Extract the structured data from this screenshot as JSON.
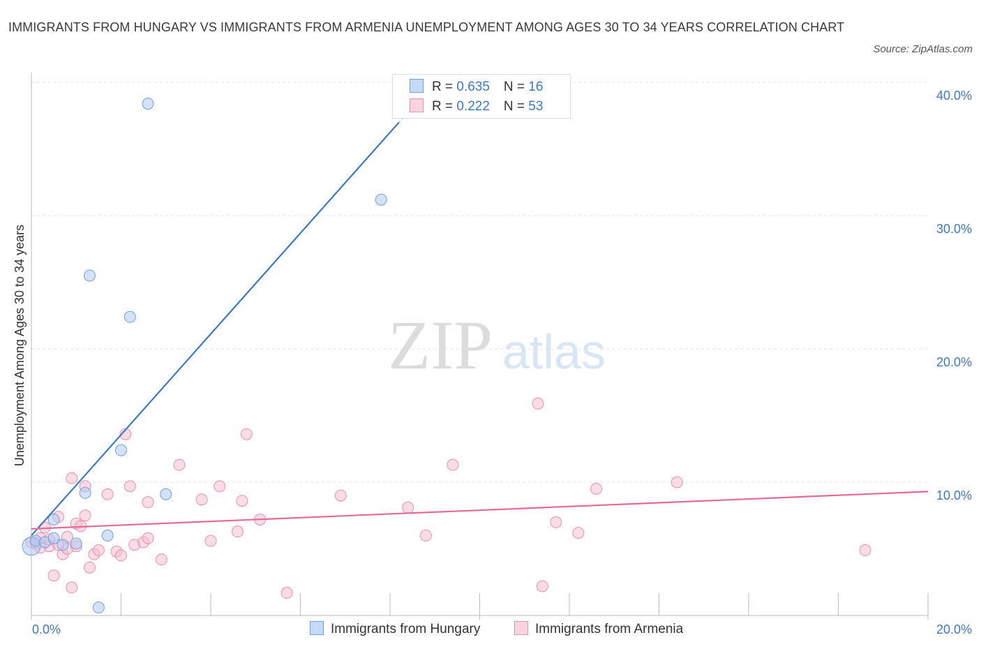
{
  "title": "IMMIGRANTS FROM HUNGARY VS IMMIGRANTS FROM ARMENIA UNEMPLOYMENT AMONG AGES 30 TO 34 YEARS CORRELATION CHART",
  "source": "Source: ZipAtlas.com",
  "watermark": {
    "zip": "ZIP",
    "atlas": "atlas"
  },
  "legend": {
    "hungary": {
      "r_label": "R = ",
      "r_value": "0.635",
      "n_label": "N = ",
      "n_value": "16"
    },
    "armenia": {
      "r_label": "R = ",
      "r_value": "0.222",
      "n_label": "N = ",
      "n_value": "53"
    }
  },
  "colors": {
    "hungary_fill": "#aecbf2",
    "hungary_stroke": "#6f9fe0",
    "hungary_line": "#3a78d0",
    "armenia_fill": "#f6bfd0",
    "armenia_stroke": "#eb8fae",
    "armenia_line": "#e36b96",
    "axis_text": "#3a78c9",
    "grid": "#e3e3e3"
  },
  "chart_data": {
    "type": "scatter",
    "title": "IMMIGRANTS FROM HUNGARY VS IMMIGRANTS FROM ARMENIA UNEMPLOYMENT AMONG AGES 30 TO 34 YEARS CORRELATION CHART",
    "xlabel": "",
    "ylabel": "Unemployment Among Ages 30 to 34 years",
    "xlim": [
      0,
      20
    ],
    "ylim": [
      0,
      40
    ],
    "x_tick_labels": [
      "0.0%",
      "20.0%"
    ],
    "y_ticks": [
      10,
      20,
      30,
      40
    ],
    "y_tick_labels": [
      "10.0%",
      "20.0%",
      "30.0%",
      "40.0%"
    ],
    "legend_position": "bottom-center",
    "series": [
      {
        "name": "Immigrants from Hungary",
        "points": [
          [
            0.0,
            5.2
          ],
          [
            0.1,
            5.6
          ],
          [
            0.3,
            5.5
          ],
          [
            0.5,
            7.2
          ],
          [
            0.5,
            5.8
          ],
          [
            0.7,
            5.3
          ],
          [
            1.0,
            5.4
          ],
          [
            1.2,
            9.2
          ],
          [
            1.3,
            25.5
          ],
          [
            1.5,
            0.6
          ],
          [
            1.7,
            6.0
          ],
          [
            2.0,
            12.4
          ],
          [
            2.2,
            22.4
          ],
          [
            2.6,
            38.4
          ],
          [
            3.0,
            9.1
          ],
          [
            7.8,
            31.2
          ]
        ],
        "trend": {
          "x": [
            0.0,
            8.2
          ],
          "y": [
            6.0,
            37.0
          ],
          "dashed_ext_x": [
            8.2,
            8.6
          ],
          "dashed_ext_y": [
            37.0,
            38.4
          ]
        }
      },
      {
        "name": "Immigrants from Armenia",
        "points": [
          [
            0.0,
            5.5
          ],
          [
            0.1,
            5.4
          ],
          [
            0.2,
            5.8
          ],
          [
            0.3,
            6.6
          ],
          [
            0.4,
            5.2
          ],
          [
            0.5,
            3.0
          ],
          [
            0.6,
            7.4
          ],
          [
            0.7,
            4.6
          ],
          [
            0.8,
            5.0
          ],
          [
            0.9,
            2.1
          ],
          [
            0.9,
            10.3
          ],
          [
            1.0,
            6.9
          ],
          [
            1.1,
            6.7
          ],
          [
            1.2,
            7.5
          ],
          [
            1.2,
            9.7
          ],
          [
            1.3,
            3.6
          ],
          [
            1.4,
            4.6
          ],
          [
            1.5,
            4.9
          ],
          [
            1.7,
            9.1
          ],
          [
            1.9,
            4.8
          ],
          [
            2.0,
            4.5
          ],
          [
            2.1,
            13.6
          ],
          [
            2.2,
            9.7
          ],
          [
            2.3,
            5.3
          ],
          [
            2.5,
            5.5
          ],
          [
            2.6,
            5.8
          ],
          [
            2.6,
            8.5
          ],
          [
            2.9,
            4.2
          ],
          [
            3.3,
            11.3
          ],
          [
            3.8,
            8.7
          ],
          [
            4.0,
            5.6
          ],
          [
            4.2,
            9.7
          ],
          [
            4.6,
            6.3
          ],
          [
            4.7,
            8.6
          ],
          [
            4.8,
            13.6
          ],
          [
            5.1,
            7.2
          ],
          [
            5.7,
            1.7
          ],
          [
            6.9,
            9.0
          ],
          [
            8.4,
            8.1
          ],
          [
            8.8,
            6.0
          ],
          [
            9.4,
            11.3
          ],
          [
            11.3,
            15.9
          ],
          [
            11.4,
            2.2
          ],
          [
            11.7,
            7.0
          ],
          [
            12.2,
            6.2
          ],
          [
            12.6,
            9.5
          ],
          [
            14.4,
            10.0
          ],
          [
            18.6,
            4.9
          ],
          [
            0.2,
            5.1
          ],
          [
            0.4,
            5.7
          ],
          [
            0.6,
            5.3
          ],
          [
            0.8,
            5.9
          ],
          [
            1.0,
            5.2
          ]
        ],
        "trend": {
          "x": [
            0.0,
            20.0
          ],
          "y": [
            6.5,
            9.3
          ]
        }
      }
    ]
  }
}
